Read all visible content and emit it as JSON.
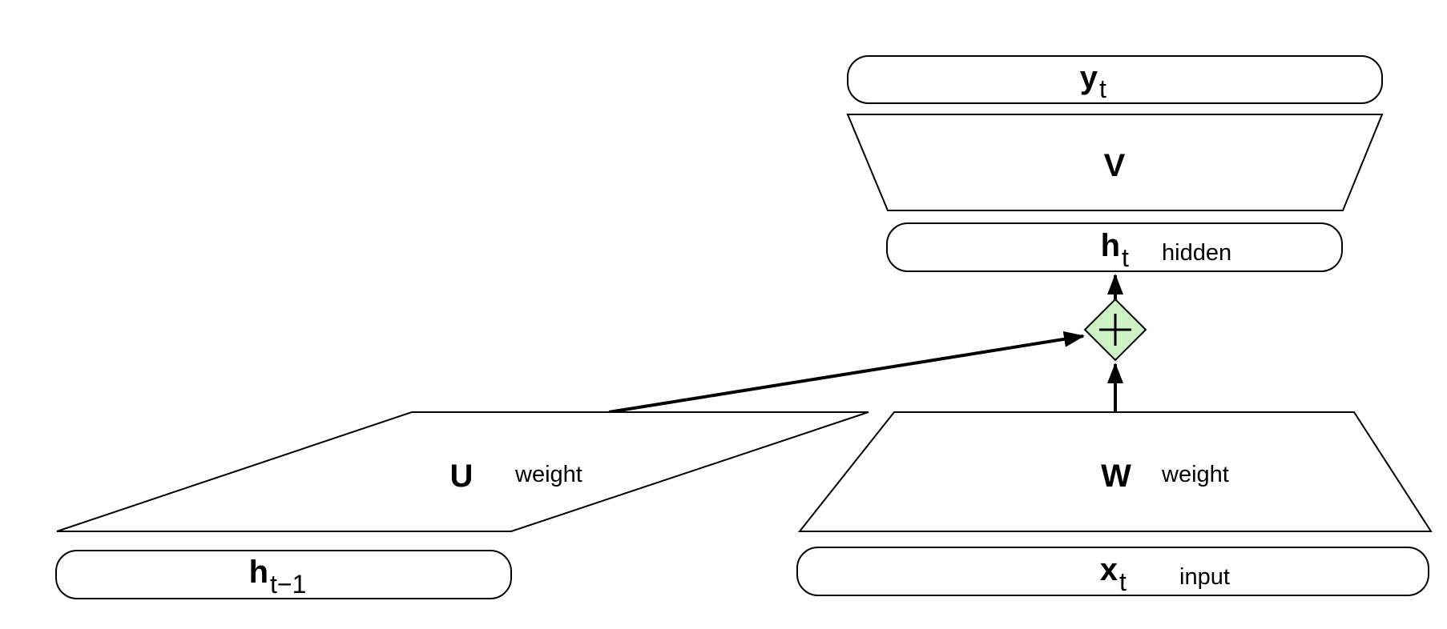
{
  "nodes": {
    "y": {
      "main": "y",
      "sub": "t"
    },
    "v": {
      "main": "V"
    },
    "h": {
      "main": "h",
      "sub": "t",
      "note": "hidden"
    },
    "u": {
      "main": "U",
      "note": "weight"
    },
    "w": {
      "main": "W",
      "note": "weight"
    },
    "hprev": {
      "main": "h",
      "sub": "t−1"
    },
    "x": {
      "main": "x",
      "sub": "t",
      "note": "input"
    }
  },
  "colors": {
    "sum_fill": "#cdf2c4",
    "stroke": "#000000"
  },
  "icons": {
    "sum": "plus-icon"
  }
}
